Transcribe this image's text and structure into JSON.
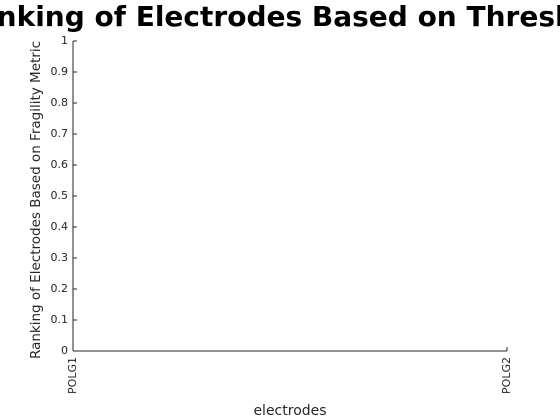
{
  "chart_data": {
    "type": "bar",
    "title": "Ranking of Electrodes Based on Threshold",
    "x_label": "electrodes",
    "y_label": "Ranking of Electrodes Based on Fragility Metric",
    "categories": [
      "POLG1",
      "POLG2"
    ],
    "ylim": [
      0,
      1
    ],
    "yticks": [
      0,
      0.1,
      0.2,
      0.3,
      0.4,
      0.5,
      0.6,
      0.7,
      0.8,
      0.9,
      1
    ],
    "grid": false
  }
}
